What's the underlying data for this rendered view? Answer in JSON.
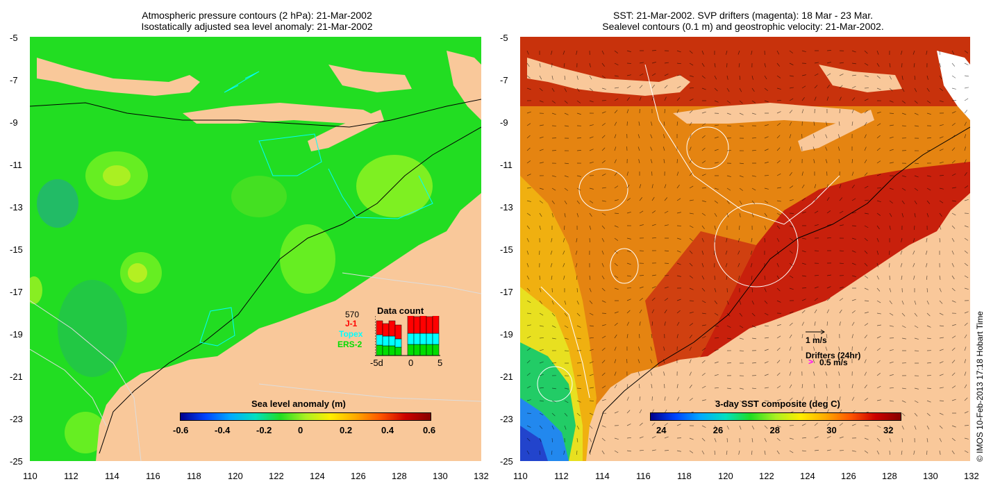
{
  "left_panel": {
    "title_line1": "Atmospheric pressure contours (2 hPa): 21-Mar-2002",
    "title_line2": "Isostatically adjusted sea level anomaly: 21-Mar-2002",
    "y_ticks": [
      "-5",
      "-7",
      "-9",
      "-11",
      "-13",
      "-15",
      "-17",
      "-19",
      "-21",
      "-23",
      "-25"
    ],
    "x_ticks": [
      "110",
      "112",
      "114",
      "116",
      "118",
      "120",
      "122",
      "124",
      "126",
      "128",
      "130",
      "132"
    ],
    "colorbar_title": "Sea level anomaly (m)",
    "colorbar_ticks": [
      "-0.6",
      "-0.4",
      "-0.2",
      "0",
      "0.2",
      "0.4",
      "0.6"
    ],
    "data_count": {
      "title": "Data count",
      "max_label": "570",
      "missions": [
        {
          "name": "J-1",
          "color": "#ff0000"
        },
        {
          "name": "Topex",
          "color": "#00ffff"
        },
        {
          "name": "ERS-2",
          "color": "#00dd00"
        }
      ],
      "x_ticks": [
        "-5d",
        "0",
        "5"
      ]
    }
  },
  "right_panel": {
    "title_line1": "SST: 21-Mar-2002. SVP drifters (magenta): 18 Mar - 23 Mar.",
    "title_line2": "Sealevel contours (0.1 m) and geostrophic velocity: 21-Mar-2002.",
    "y_ticks": [
      "-5",
      "-7",
      "-9",
      "-11",
      "-13",
      "-15",
      "-17",
      "-19",
      "-21",
      "-23",
      "-25"
    ],
    "x_ticks": [
      "110",
      "112",
      "114",
      "116",
      "118",
      "120",
      "122",
      "124",
      "126",
      "128",
      "130",
      "132"
    ],
    "colorbar_title": "3-day SST composite (deg C)",
    "colorbar_ticks": [
      "24",
      "26",
      "28",
      "30",
      "32"
    ],
    "velocity_legend": "1 m/s",
    "drifter_legend_title": "Drifters (24hr)",
    "drifter_legend_value": "0.5 m/s"
  },
  "copyright": "© IMOS 10-Feb-2013 17:18 Hobart Time",
  "colors": {
    "land": "#f9c89a",
    "ocean_green": "#22dd22",
    "sst_red": "#c8200c"
  }
}
